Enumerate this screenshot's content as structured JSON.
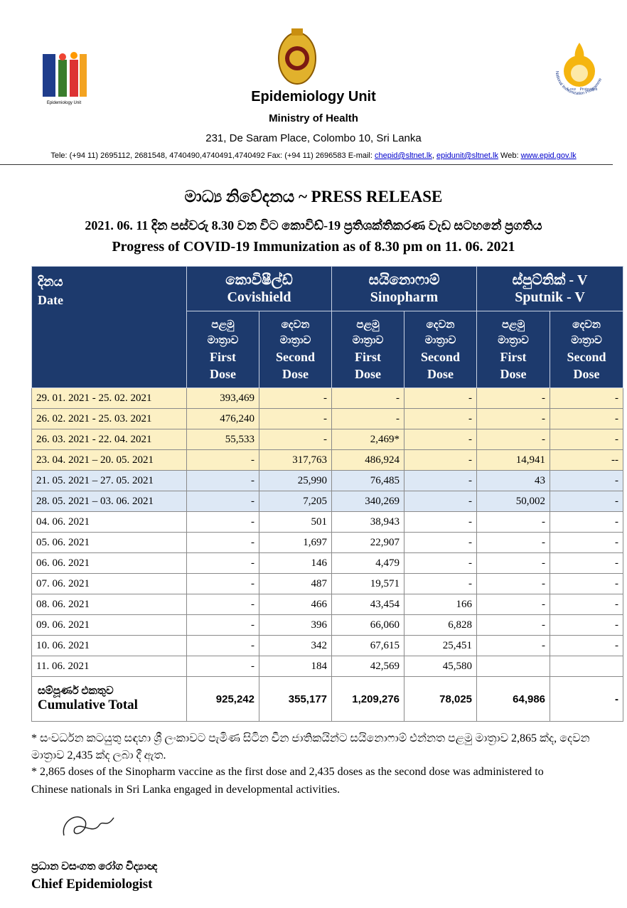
{
  "header": {
    "left_logo_text": "Epidemiology Unit",
    "org": "Epidemiology Unit",
    "ministry": "Ministry of Health",
    "address": "231, De Saram Place, Colombo 10, Sri Lanka",
    "contact": {
      "text": "Tele: (+94 11) 2695112, 2681548, 4740490,4740491,4740492  Fax: (+94 11) 2696583  E-mail:",
      "email1": "chepid@sltnet.lk",
      "sep": ",",
      "email2": "epidunit@sltnet.lk",
      "web_label": "Web:",
      "web": "www.epid.gov.lk"
    },
    "right_logo": {
      "ring": "National Immunization Programme",
      "left": "Love",
      "right": "Protection"
    }
  },
  "title": "මාධ්‍ය නිවේදනය ~ PRESS RELEASE",
  "subtitle_si": "2021. 06. 11 දින පස්වරු 8.30 වන විට කොවිඩ්-19 ප්‍රතිශක්තිකරණ වැඩ සටහනේ ප්‍රගතිය",
  "subtitle_en": "Progress of COVID-19 Immunization as of 8.30 pm on 11. 06. 2021",
  "table": {
    "date_si": "දිනය",
    "date_en": "Date",
    "vaccines": [
      {
        "si": "කොවිෂීල්ඩ්",
        "en": "Covishield"
      },
      {
        "si": "සයිනොෆාම්",
        "en": "Sinopharm"
      },
      {
        "si": "ස්පුට්නික් - V",
        "en": "Sputnik - V"
      }
    ],
    "doses": [
      [
        "පළමු",
        "මාත්‍රාව",
        "First",
        "Dose"
      ],
      [
        "දෙවන",
        "මාත්‍රාව",
        "Second",
        "Dose"
      ],
      [
        "පළමු",
        "මාත්‍රාව",
        "First",
        "Dose"
      ],
      [
        "දෙවන",
        "මාත්‍රාව",
        "Second",
        "Dose"
      ],
      [
        "පළමු",
        "මාත්‍රාව",
        "First",
        "Dose"
      ],
      [
        "දෙවන",
        "මාත්‍රාව",
        "Second",
        "Dose"
      ]
    ],
    "rows": [
      [
        "29. 01. 2021 - 25. 02. 2021",
        "393,469",
        "-",
        "-",
        "-",
        "-",
        "-"
      ],
      [
        "26. 02. 2021 - 25. 03. 2021",
        "476,240",
        "-",
        "-",
        "-",
        "-",
        "-"
      ],
      [
        "26. 03. 2021 - 22. 04. 2021",
        "55,533",
        "-",
        "2,469*",
        "-",
        "-",
        "-"
      ],
      [
        "23. 04. 2021 – 20. 05. 2021",
        "-",
        "317,763",
        "486,924",
        "-",
        "14,941",
        "--"
      ],
      [
        "21. 05. 2021 – 27. 05. 2021",
        "-",
        "25,990",
        "76,485",
        "-",
        "43",
        "-"
      ],
      [
        "28. 05. 2021 – 03. 06. 2021",
        "-",
        "7,205",
        "340,269",
        "-",
        "50,002",
        "-"
      ],
      [
        "04. 06. 2021",
        "-",
        "501",
        "38,943",
        "-",
        "-",
        "-"
      ],
      [
        "05. 06. 2021",
        "-",
        "1,697",
        "22,907",
        "-",
        "-",
        "-"
      ],
      [
        "06. 06. 2021",
        "-",
        "146",
        "4,479",
        "-",
        "-",
        "-"
      ],
      [
        "07. 06. 2021",
        "-",
        "487",
        "19,571",
        "-",
        "-",
        "-"
      ],
      [
        "08. 06. 2021",
        "-",
        "466",
        "43,454",
        "166",
        "-",
        "-"
      ],
      [
        "09. 06. 2021",
        "-",
        "396",
        "66,060",
        "6,828",
        "-",
        "-"
      ],
      [
        "10. 06. 2021",
        "-",
        "342",
        "67,615",
        "25,451",
        "-",
        "-"
      ],
      [
        "11. 06. 2021",
        "-",
        "184",
        "42,569",
        "45,580",
        null,
        null
      ]
    ],
    "total": {
      "label_si": "සම්පූර්ණ එකතුව",
      "label_en": "Cumulative Total",
      "values": [
        "925,242",
        "355,177",
        "1,209,276",
        "78,025",
        "64,986",
        "-"
      ]
    }
  },
  "footnote_si": "* සංවර්ධන කටයුතු සඳහා ශ්‍රී ලංකාවට පැමිණ සිටින චීන ජාතිකයින්ට සයිනොෆාම් එන්නත පළමු මාත්‍රාව 2,865 ක්ද, දෙවන මාත්‍රාව 2,435 ක්ද ලබා දී ඇත.",
  "footnote_en": "* 2,865 doses of the Sinopharm vaccine as the first dose and 2,435 doses as the second dose was administered to Chinese nationals in Sri Lanka engaged in developmental activities.",
  "signature": {
    "title_si": "ප්‍රධාන වසංගත රෝග විද්‍යාඥ",
    "title_en": "Chief Epidemiologist"
  }
}
